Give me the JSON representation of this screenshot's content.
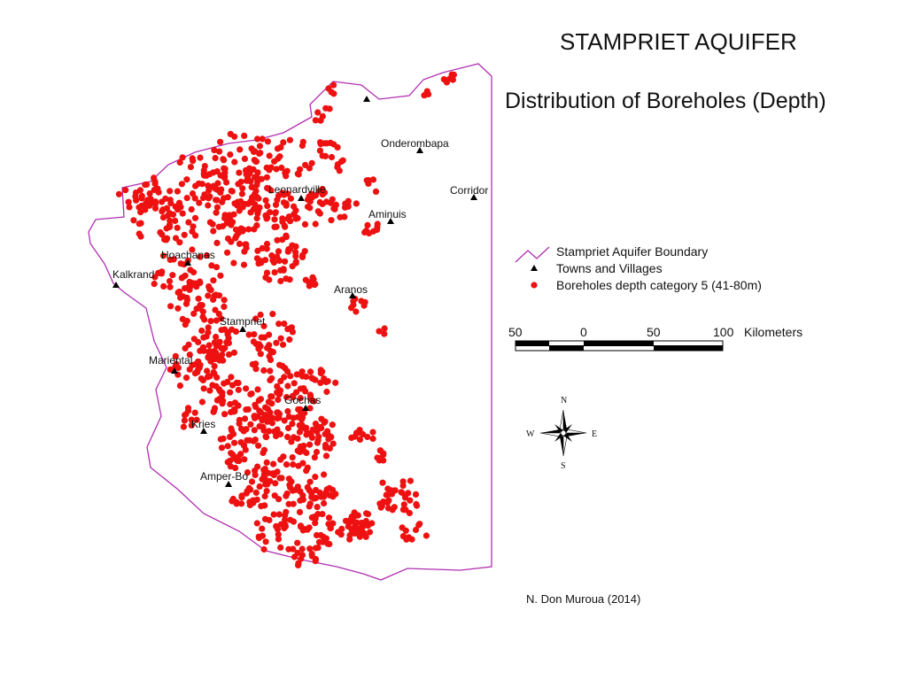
{
  "title": "STAMPRIET AQUIFER",
  "subtitle": "Distribution of Boreholes (Depth)",
  "legend": {
    "boundary": "Stampriet Aquifer Boundary",
    "towns": "Towns and Villages",
    "boreholes": "Boreholes depth category 5 (41-80m)"
  },
  "scale_bar": {
    "ticks": [
      "50",
      "0",
      "50",
      "100"
    ],
    "units": "Kilometers"
  },
  "compass": {
    "n": "N",
    "s": "S",
    "e": "E",
    "w": "W"
  },
  "credit": "N. Don Muroua (2014)",
  "towns": [
    {
      "name": "Onderombapa"
    },
    {
      "name": "Corridor"
    },
    {
      "name": "Leonardville"
    },
    {
      "name": "Aminuis"
    },
    {
      "name": "Hoachanas"
    },
    {
      "name": "Kalkrand"
    },
    {
      "name": "Aranos"
    },
    {
      "name": "Stampriet"
    },
    {
      "name": "Mariental"
    },
    {
      "name": "Gochas"
    },
    {
      "name": "Kries"
    },
    {
      "name": "Amper-Bo"
    }
  ],
  "colors": {
    "boundary": "#b02fb0",
    "borehole": "#ee1111",
    "town": "#000000"
  }
}
